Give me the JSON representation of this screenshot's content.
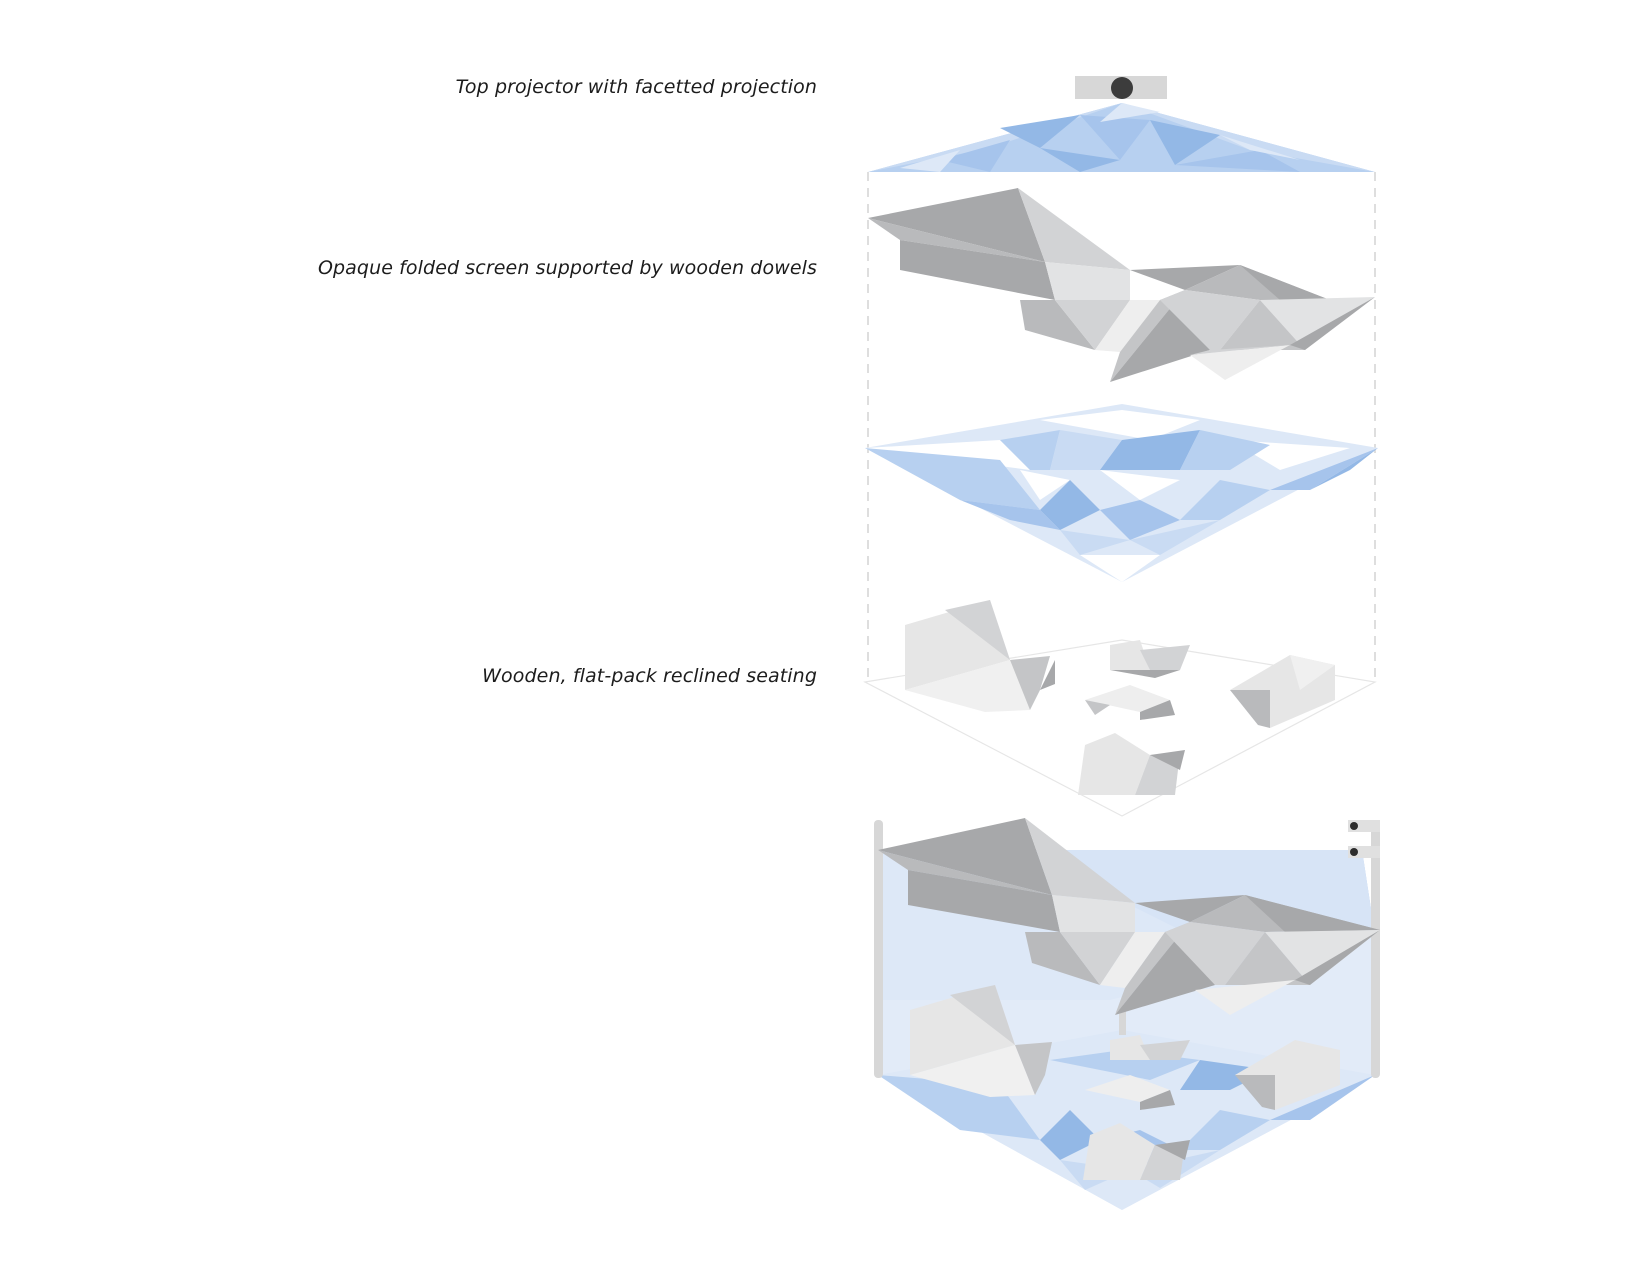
{
  "labels": {
    "projector": "Top projector with facetted projection",
    "screen": "Opaque folded screen supported by wooden dowels",
    "seating": "Wooden, flat-pack reclined seating"
  },
  "colors": {
    "blue_light": "#dde8f7",
    "blue_mid": "#b7d0f0",
    "blue_dark": "#93b8e6",
    "grey_light": "#eeeeee",
    "grey_mid": "#d2d3d5",
    "grey_dark": "#a7a8aa",
    "dash_line": "#d4d4d4"
  }
}
